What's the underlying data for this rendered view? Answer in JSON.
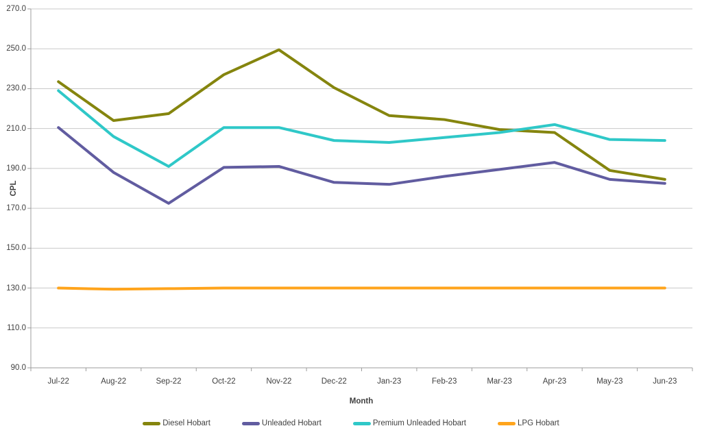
{
  "chart_data": {
    "type": "line",
    "title": "",
    "xlabel": "Month",
    "ylabel": "CPL",
    "ylim": [
      90,
      270
    ],
    "y_tick_step": 20,
    "y_tick_labels": [
      "270.0",
      "250.0",
      "230.0",
      "210.0",
      "190.0",
      "170.0",
      "150.0",
      "130.0",
      "110.0",
      "90.0"
    ],
    "y_tick_values": [
      270,
      250,
      230,
      210,
      190,
      170,
      150,
      130,
      110,
      90
    ],
    "categories": [
      "Jul-22",
      "Aug-22",
      "Sep-22",
      "Oct-22",
      "Nov-22",
      "Dec-22",
      "Jan-23",
      "Feb-23",
      "Mar-23",
      "Apr-23",
      "May-23",
      "Jun-23"
    ],
    "grid": "horizontal",
    "legend_position": "bottom",
    "series": [
      {
        "name": "Diesel Hobart",
        "color": "#85850E",
        "values": [
          233.5,
          214.0,
          217.5,
          237.0,
          249.5,
          230.5,
          216.5,
          214.5,
          209.5,
          208.0,
          189.0,
          184.5
        ]
      },
      {
        "name": "Unleaded Hobart",
        "color": "#615CA0",
        "values": [
          210.5,
          188.0,
          172.5,
          190.5,
          191.0,
          183.0,
          182.0,
          186.0,
          189.5,
          193.0,
          184.5,
          182.5
        ]
      },
      {
        "name": "Premium Unleaded Hobart",
        "color": "#2FC8C8",
        "values": [
          229.0,
          206.0,
          191.0,
          210.5,
          210.5,
          204.0,
          203.0,
          205.5,
          208.0,
          212.0,
          204.5,
          204.0
        ]
      },
      {
        "name": "LPG Hobart",
        "color": "#FFA41C",
        "values": [
          130.0,
          129.4,
          129.7,
          130.0,
          130.0,
          130.0,
          130.0,
          130.0,
          130.0,
          130.0,
          130.0,
          130.0
        ]
      }
    ]
  },
  "colors": {
    "gridline": "#C9C9C9",
    "axis": "#9C9C9C",
    "text": "#404040",
    "background": "#FFFFFF"
  }
}
